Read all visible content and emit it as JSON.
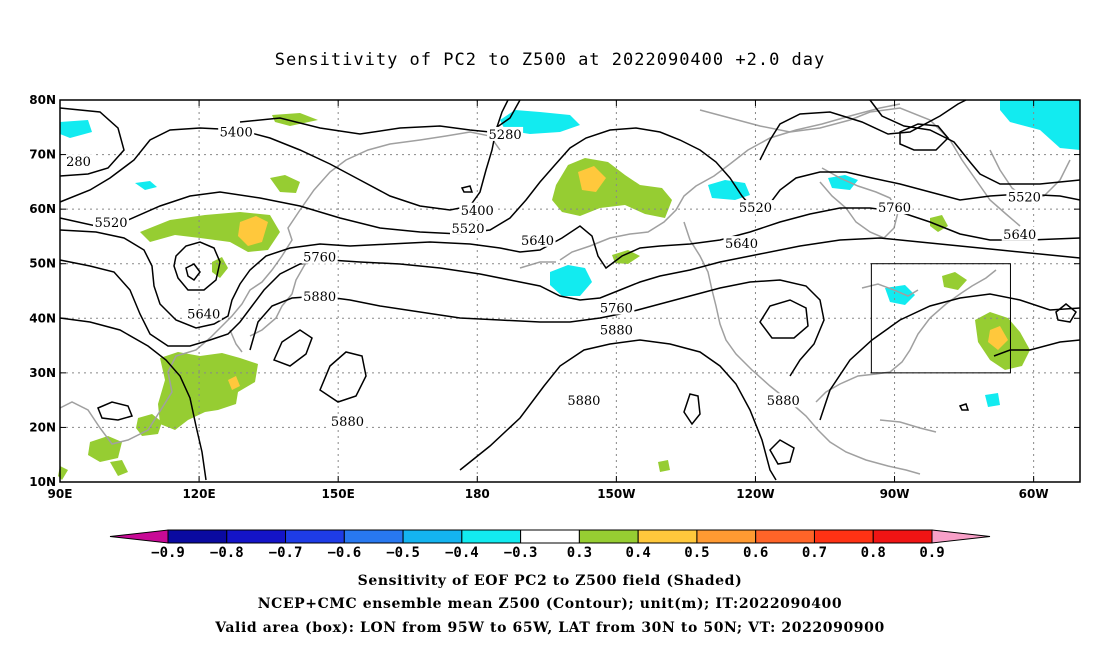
{
  "title": "Sensitivity of PC2 to Z500 at 2022090400 +2.0 day",
  "map": {
    "lat_labels": [
      "80N",
      "70N",
      "60N",
      "50N",
      "40N",
      "30N",
      "20N",
      "10N"
    ],
    "lon_labels": [
      "90E",
      "120E",
      "150E",
      "180",
      "150W",
      "120W",
      "90W",
      "60W"
    ],
    "contour_labels": [
      {
        "text": "5400",
        "lon": 128,
        "lat": 74
      },
      {
        "text": "5280",
        "lon": -174,
        "lat": 73.6
      },
      {
        "text": "280",
        "lon": 94,
        "lat": 68.6
      },
      {
        "text": "5400",
        "lon": 180,
        "lat": 59.7
      },
      {
        "text": "5520",
        "lon": -120,
        "lat": 60.2
      },
      {
        "text": "5520",
        "lon": -62,
        "lat": 62.1
      },
      {
        "text": "5760",
        "lon": -90,
        "lat": 60.2
      },
      {
        "text": "5520",
        "lon": 101,
        "lat": 57.5
      },
      {
        "text": "5520",
        "lon": 178,
        "lat": 56.4
      },
      {
        "text": "5640",
        "lon": -167,
        "lat": 54.2
      },
      {
        "text": "5640",
        "lon": -123,
        "lat": 53.6
      },
      {
        "text": "5640",
        "lon": -63,
        "lat": 55.3
      },
      {
        "text": "5760",
        "lon": 146,
        "lat": 51.1
      },
      {
        "text": "5880",
        "lon": 146,
        "lat": 43.9
      },
      {
        "text": "5640",
        "lon": 121,
        "lat": 40.7
      },
      {
        "text": "5760",
        "lon": -150,
        "lat": 41.8
      },
      {
        "text": "5880",
        "lon": -150,
        "lat": 37.8
      },
      {
        "text": "5880",
        "lon": 152,
        "lat": 21
      },
      {
        "text": "5880",
        "lon": -157,
        "lat": 24.8
      },
      {
        "text": "5880",
        "lon": -114,
        "lat": 24.8
      }
    ],
    "valid_box": {
      "lon_min": -95,
      "lon_max": -65,
      "lat_min": 30,
      "lat_max": 50
    },
    "colors": {
      "coast": "#a0a0a0",
      "contour": "#000000",
      "grid": "#888888"
    }
  },
  "colorbar": {
    "labels": [
      "-0.9",
      "-0.8",
      "-0.7",
      "-0.6",
      "-0.5",
      "-0.4",
      "-0.3",
      "0.3",
      "0.4",
      "0.5",
      "0.6",
      "0.7",
      "0.8",
      "0.9"
    ],
    "colors": [
      "#c80a96",
      "#0a0aa0",
      "#1414c8",
      "#1e3ce6",
      "#2878f0",
      "#14b4f0",
      "#12ebf0",
      "#ffffff",
      "#96cd32",
      "#ffc83c",
      "#ff9a32",
      "#ff6428",
      "#ff3214",
      "#f01414",
      "#f8a0c8"
    ]
  },
  "captions": [
    "Sensitivity of EOF PC2 to Z500 field (Shaded)",
    "NCEP+CMC ensemble mean Z500 (Contour); unit(m); IT:2022090400",
    "Valid area (box): LON from 95W to 65W, LAT from 30N to 50N; VT: 2022090900"
  ]
}
